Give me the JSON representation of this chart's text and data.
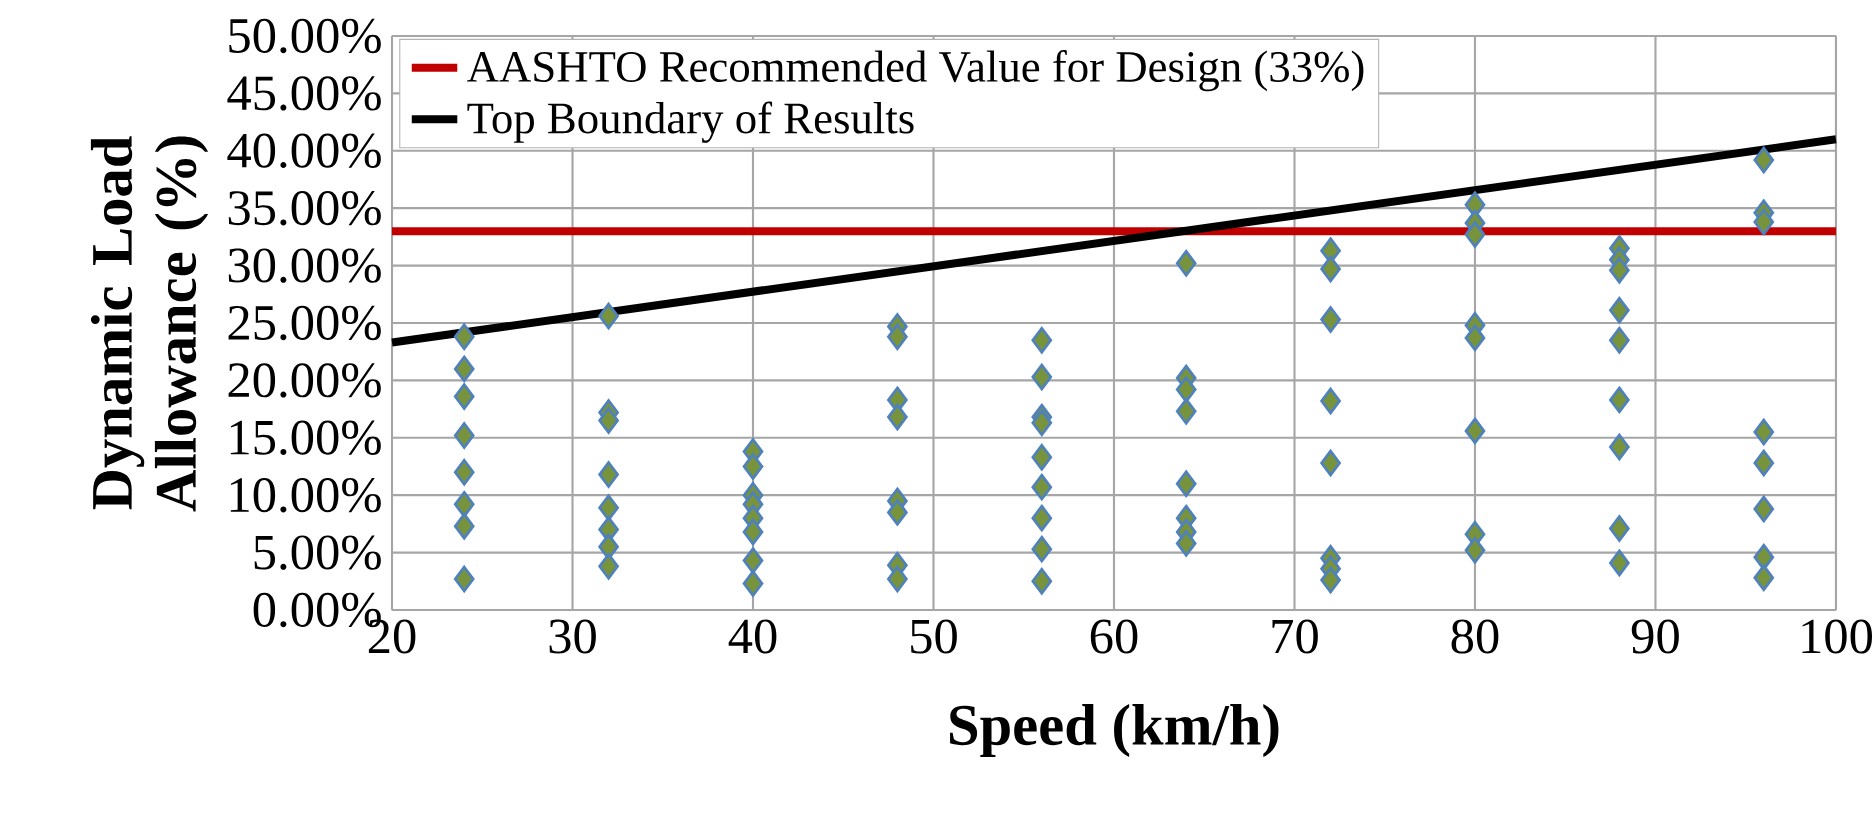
{
  "chart_data": {
    "type": "scatter",
    "xlabel": "Speed (km/h)",
    "ylabel": "Dynamic Load Allowance (%)",
    "xlim": [
      20,
      100
    ],
    "xticks": [
      20,
      30,
      40,
      50,
      60,
      70,
      80,
      90,
      100
    ],
    "ylim": [
      0,
      50
    ],
    "yticks": [
      {
        "value": 0,
        "label": "0.00%"
      },
      {
        "value": 5,
        "label": "5.00%"
      },
      {
        "value": 10,
        "label": "10.00%"
      },
      {
        "value": 15,
        "label": "15.00%"
      },
      {
        "value": 20,
        "label": "20.00%"
      },
      {
        "value": 25,
        "label": "25.00%"
      },
      {
        "value": 30,
        "label": "30.00%"
      },
      {
        "value": 35,
        "label": "35.00%"
      },
      {
        "value": 40,
        "label": "40.00%"
      },
      {
        "value": 45,
        "label": "45.00%"
      },
      {
        "value": 50,
        "label": "50.00%"
      }
    ],
    "grid": true,
    "legend": "top left",
    "marker": "diamond",
    "ref_lines": [
      {
        "axis": "y",
        "value": 33,
        "label": "AASHTO Recommended Value for Design (33%)",
        "color": "#c00000"
      }
    ],
    "series": [
      {
        "color": "#77933c",
        "x": [
          24,
          24,
          24,
          24,
          24,
          24,
          24,
          24,
          32,
          32,
          32,
          32,
          32,
          32,
          32,
          32,
          40,
          40,
          40,
          40,
          40,
          40,
          40,
          40,
          48,
          48,
          48,
          48,
          48,
          48,
          48,
          48,
          56,
          56,
          56,
          56,
          56,
          56,
          56,
          56,
          56,
          64,
          64,
          64,
          64,
          64,
          64,
          64,
          64,
          72,
          72,
          72,
          72,
          72,
          72,
          72,
          72,
          80,
          80,
          80,
          80,
          80,
          80,
          80,
          80,
          88,
          88,
          88,
          88,
          88,
          88,
          88,
          88,
          88,
          96,
          96,
          96,
          96,
          96,
          96,
          96,
          96
        ],
        "values": [
          23.8,
          21,
          18.6,
          15.2,
          12,
          9.2,
          7.3,
          2.7,
          25.6,
          17.2,
          16.5,
          11.8,
          8.9,
          7,
          5.5,
          3.8,
          13.8,
          12.5,
          10,
          9.2,
          8,
          6.8,
          4.3,
          2.3,
          24.7,
          23.8,
          18.3,
          16.8,
          9.5,
          8.5,
          3.9,
          2.7,
          23.5,
          20.3,
          16.8,
          16.3,
          13.3,
          10.7,
          8,
          5.3,
          2.5,
          30.2,
          20.2,
          19.2,
          17.3,
          11,
          8,
          6.8,
          5.8,
          31.3,
          29.7,
          25.3,
          18.2,
          12.8,
          4.5,
          3.6,
          2.6,
          35.3,
          33.7,
          32.7,
          24.8,
          23.7,
          15.6,
          6.6,
          5.2,
          31.5,
          30.5,
          29.6,
          26.1,
          23.5,
          18.3,
          14.2,
          7.1,
          4.1,
          39.2,
          34.6,
          33.8,
          15.5,
          12.8,
          8.8,
          4.6,
          2.8
        ]
      },
      {
        "type": "line",
        "name": "Top Boundary of Results",
        "color": "#000000",
        "x": [
          20,
          100
        ],
        "values": [
          23.3,
          41
        ],
        "marker": "none"
      }
    ]
  }
}
